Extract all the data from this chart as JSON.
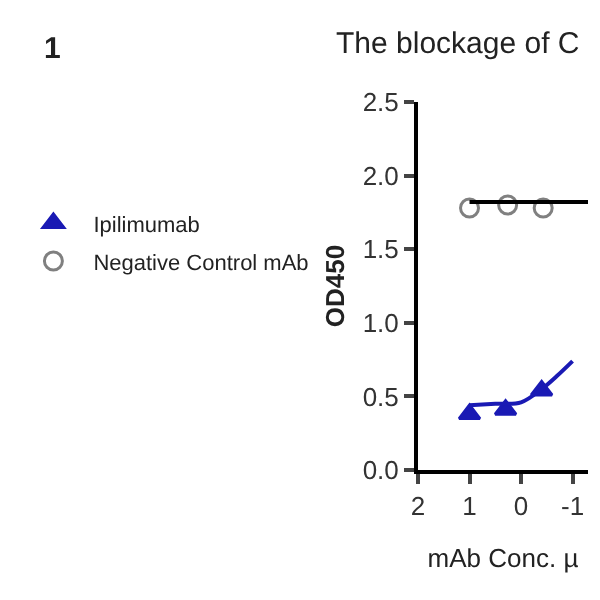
{
  "chart_data": {
    "type": "scatter",
    "title": "The blockage of C",
    "xlabel": "mAb Conc. µ",
    "ylabel": "OD450",
    "annotations": [
      "1"
    ],
    "xlim": [
      2,
      -1.3
    ],
    "xticks": [
      2,
      1,
      0,
      -1
    ],
    "ylim": [
      0,
      2.5
    ],
    "yticks": [
      {
        "value": 0,
        "label": "0.0"
      },
      {
        "value": 0.5,
        "label": "0.5"
      },
      {
        "value": 1,
        "label": "1.0"
      },
      {
        "value": 1.5,
        "label": "1.5"
      },
      {
        "value": 2,
        "label": "2.0"
      },
      {
        "value": 2.5,
        "label": "2.5"
      }
    ],
    "grid": false,
    "legend": "left",
    "series": [
      {
        "name": "Ipilimumab",
        "color": "#1a1ab4",
        "marker": "triangle",
        "x": [
          1,
          0.3,
          -0.4
        ],
        "values": [
          0.38,
          0.41,
          0.54
        ]
      },
      {
        "name": "Negative Control mAb",
        "color": "#808080",
        "marker": "circle",
        "x": [
          1,
          0.26,
          -0.43
        ],
        "values": [
          1.78,
          1.8,
          1.78
        ]
      },
      {
        "type": "line",
        "color": "#1a1ab4",
        "x": [
          1,
          0.5,
          0,
          -0.4,
          -0.7,
          -1.0
        ],
        "values": [
          0.44,
          0.45,
          0.46,
          0.55,
          0.64,
          0.74
        ]
      },
      {
        "type": "line",
        "color": "#000000",
        "x": [
          1,
          -1.3
        ],
        "values": [
          1.82,
          1.82
        ]
      }
    ]
  }
}
